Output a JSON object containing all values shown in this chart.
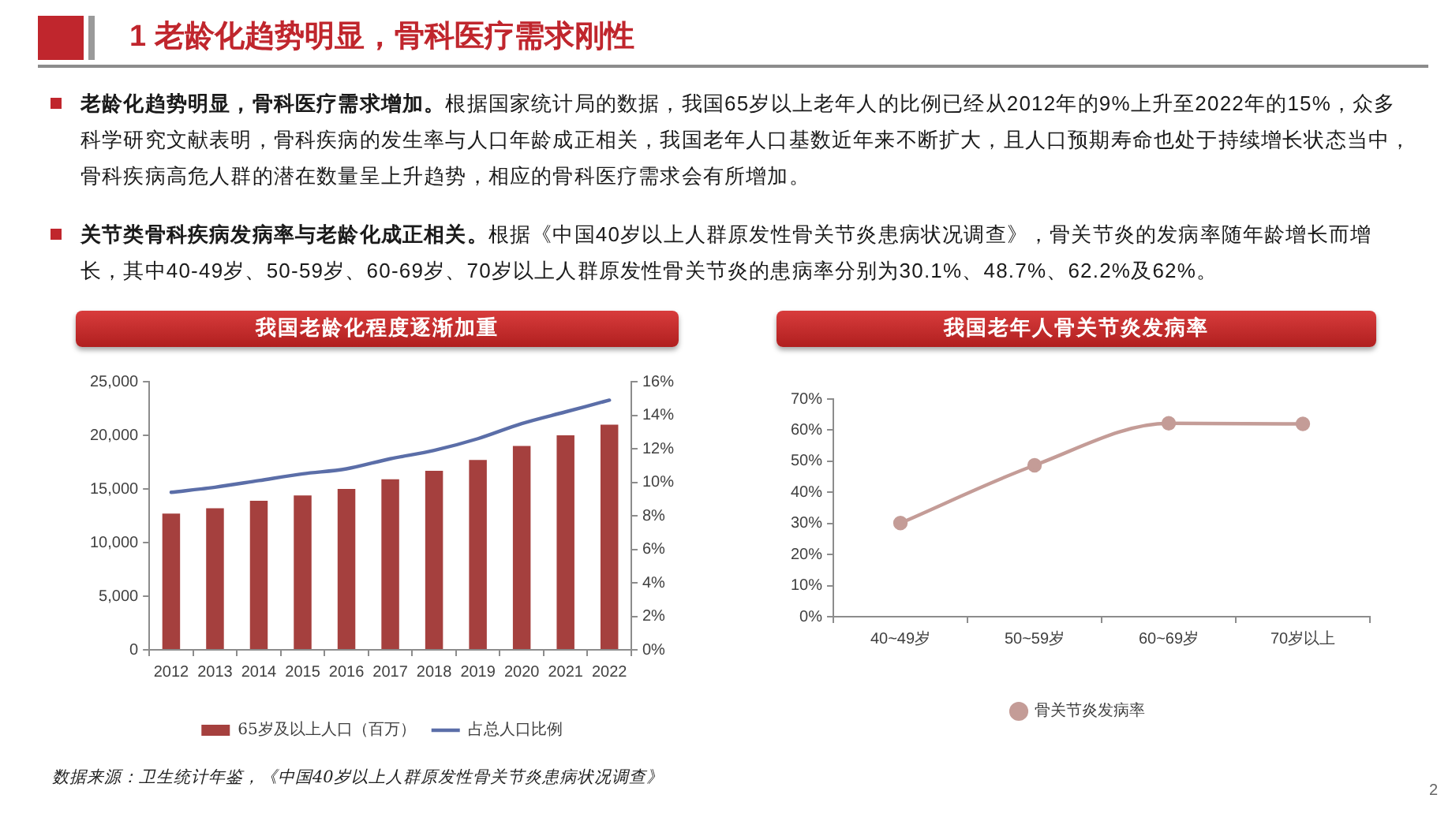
{
  "chart_data": [
    {
      "type": "other",
      "title": "1 老龄化趋势明显，骨科医疗需求刚性",
      "annotations": [
        "老龄化趋势明显，骨科医疗需求增加。根据国家统计局的数据，我国65岁以上老年人的比例已经从2012年的9%上升至2022年的15%，众多科学研究文献表明，骨科疾病的发生率与人口年龄成正相关，我国老年人口基数近年来不断扩大，且人口预期寿命也处于持续增长状态当中，骨科疾病高危人群的潜在数量呈上升趋势，相应的骨科医疗需求会有所增加。",
        "关节类骨科疾病发病率与老龄化成正相关。根据《中国40岁以上人群原发性骨关节炎患病状况调查》，骨关节炎的发病率随年龄增长而增长，其中40-49岁、50-59岁、60-69岁、70岁以上人群原发性骨关节炎的患病率分别为30.1%、48.7%、62.2%及62%。"
      ]
    },
    {
      "type": "bar",
      "title": "我国老龄化程度逐渐加重",
      "categories": [
        "2012",
        "2013",
        "2014",
        "2015",
        "2016",
        "2017",
        "2018",
        "2019",
        "2020",
        "2021",
        "2022"
      ],
      "series": [
        {
          "name": "65岁及以上人口（百万）",
          "color": "#a5403e",
          "values": [
            12700,
            13200,
            13900,
            14400,
            15000,
            15900,
            16700,
            17700,
            19000,
            20000,
            21000
          ]
        },
        {
          "name": "占总人口比例",
          "type": "line",
          "axis": "y2",
          "color": "#5b6ea8",
          "values": [
            9.4,
            9.7,
            10.1,
            10.5,
            10.8,
            11.4,
            11.9,
            12.6,
            13.5,
            14.2,
            14.9
          ]
        }
      ],
      "ylim": [
        0,
        25000
      ],
      "yticks": [
        0,
        {
          "value": 5000,
          "label": "5,000"
        },
        {
          "value": 10000,
          "label": "10,000"
        },
        {
          "value": 15000,
          "label": "15,000"
        },
        {
          "value": 20000,
          "label": "20,000"
        },
        {
          "value": 25000,
          "label": "25,000"
        }
      ],
      "y2lim": [
        0,
        16
      ],
      "y2ticks": [
        {
          "value": 0,
          "label": "0%"
        },
        {
          "value": 2,
          "label": "2%"
        },
        {
          "value": 4,
          "label": "4%"
        },
        {
          "value": 6,
          "label": "6%"
        },
        {
          "value": 8,
          "label": "8%"
        },
        {
          "value": 10,
          "label": "10%"
        },
        {
          "value": 12,
          "label": "12%"
        },
        {
          "value": 14,
          "label": "14%"
        },
        {
          "value": 16,
          "label": "16%"
        }
      ],
      "legend": "bottom",
      "grid": false
    },
    {
      "type": "line",
      "title": "我国老年人骨关节炎发病率",
      "categories": [
        "40~49岁",
        "50~59岁",
        "60~69岁",
        "70岁以上"
      ],
      "series": [
        {
          "name": "骨关节炎发病率",
          "color": "#c49c97",
          "values": [
            30.1,
            48.7,
            62.2,
            62
          ]
        }
      ],
      "ylim": [
        0,
        70
      ],
      "yticks": [
        {
          "value": 0,
          "label": "0%"
        },
        {
          "value": 10,
          "label": "10%"
        },
        {
          "value": 20,
          "label": "20%"
        },
        {
          "value": 30,
          "label": "30%"
        },
        {
          "value": 40,
          "label": "40%"
        },
        {
          "value": 50,
          "label": "50%"
        },
        {
          "value": 60,
          "label": "60%"
        },
        {
          "value": 70,
          "label": "70%"
        }
      ],
      "marker": "circle",
      "legend": "bottom",
      "grid": false
    },
    {
      "type": "other",
      "annotations": [
        "数据来源：卫生统计年鉴，《中国40岁以上人群原发性骨关节炎患病状况调查》",
        "2"
      ]
    }
  ]
}
